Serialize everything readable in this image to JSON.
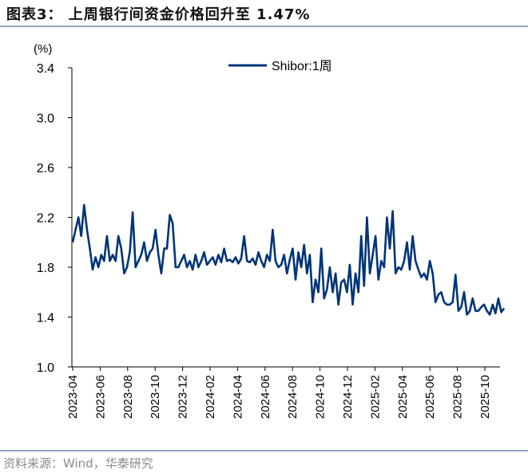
{
  "title": "图表3： 上周银行间资金价格回升至 1.47%",
  "source": "资料来源：Wind，华泰研究",
  "chart_data": {
    "type": "line",
    "ylabel": "(%)",
    "ylim": [
      1.0,
      3.4
    ],
    "yticks": [
      "1.0",
      "1.4",
      "1.8",
      "2.2",
      "2.6",
      "3.0",
      "3.4"
    ],
    "xticks": [
      "2023-04",
      "2023-06",
      "2023-08",
      "2023-10",
      "2023-12",
      "2024-02",
      "2024-04",
      "2024-06",
      "2024-08",
      "2024-10",
      "2024-12",
      "2025-02",
      "2025-04",
      "2025-06",
      "2025-08",
      "2025-10"
    ],
    "x_range_months_from_2023_04": [
      0,
      31.4
    ],
    "legend": "top-center",
    "grid": false,
    "series": [
      {
        "name": "Shibor:1周",
        "color": "#003478",
        "values": [
          2.0,
          2.1,
          2.2,
          2.05,
          2.3,
          2.1,
          1.95,
          1.78,
          1.88,
          1.8,
          1.9,
          1.85,
          2.05,
          1.85,
          1.9,
          1.85,
          2.05,
          1.95,
          1.75,
          1.8,
          1.92,
          2.24,
          1.8,
          1.85,
          1.9,
          2.0,
          1.85,
          1.92,
          1.95,
          2.1,
          1.9,
          1.75,
          1.95,
          1.95,
          2.22,
          2.15,
          1.8,
          1.8,
          1.85,
          1.9,
          1.8,
          1.85,
          1.78,
          1.9,
          1.8,
          1.85,
          1.92,
          1.82,
          1.85,
          1.88,
          1.82,
          1.9,
          1.84,
          1.95,
          1.85,
          1.86,
          1.84,
          1.88,
          1.83,
          1.87,
          2.05,
          1.85,
          1.84,
          1.87,
          1.82,
          1.92,
          1.85,
          1.8,
          1.9,
          1.85,
          2.1,
          1.85,
          1.8,
          1.82,
          1.9,
          1.75,
          1.86,
          1.95,
          1.7,
          1.92,
          1.8,
          1.98,
          1.75,
          1.9,
          1.52,
          1.7,
          1.6,
          1.95,
          1.55,
          1.62,
          1.8,
          1.6,
          1.75,
          1.5,
          1.68,
          1.7,
          1.6,
          1.82,
          1.5,
          1.75,
          1.6,
          2.05,
          1.65,
          2.2,
          1.75,
          1.9,
          2.05,
          1.7,
          1.85,
          1.8,
          2.2,
          1.95,
          2.25,
          1.75,
          1.8,
          1.78,
          1.85,
          2.0,
          1.78,
          2.05,
          1.85,
          1.78,
          1.72,
          1.75,
          1.7,
          1.85,
          1.75,
          1.52,
          1.58,
          1.6,
          1.52,
          1.5,
          1.5,
          1.52,
          1.74,
          1.45,
          1.48,
          1.6,
          1.42,
          1.45,
          1.55,
          1.45,
          1.45,
          1.48,
          1.5,
          1.45,
          1.42,
          1.5,
          1.43,
          1.55,
          1.44,
          1.47
        ]
      }
    ]
  }
}
